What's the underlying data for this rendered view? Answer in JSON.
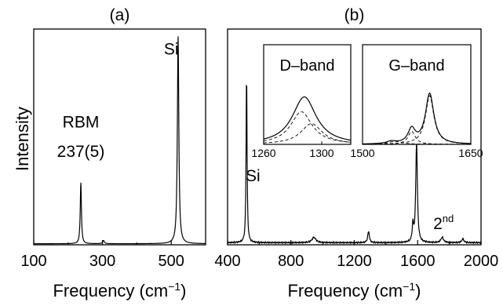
{
  "figure": {
    "ylabel": "Intensity",
    "colors": {
      "line": "#000000",
      "frame": "#000000",
      "background": "#ffffff"
    }
  },
  "chart_data": [
    {
      "type": "line",
      "panel_label": "(a)",
      "xlabel": "Frequency (cm⁻¹)",
      "ylabel": "Intensity",
      "xlim": [
        100,
        600
      ],
      "ylim": [
        0,
        1.02
      ],
      "x_ticks": [
        100,
        300,
        500
      ],
      "x_tick_labels": [
        "100",
        "300",
        "500"
      ],
      "y_ticks_shown": false,
      "series": [
        {
          "peaks": [
            {
              "center": 237,
              "height": 0.29,
              "width": 2.0,
              "shape": "lorentzian"
            },
            {
              "center": 303,
              "height": 0.015,
              "width": 3.0,
              "shape": "lorentzian"
            },
            {
              "center": 520,
              "height": 0.98,
              "width": 2.5,
              "shape": "lorentzian"
            }
          ],
          "baseline": 0.005
        }
      ],
      "annotations": [
        {
          "text": "RBM",
          "x": 237,
          "y": 0.555
        },
        {
          "text": "237(5)",
          "x": 237,
          "y": 0.415
        },
        {
          "text": "Si",
          "x": 500,
          "y": 0.9
        }
      ]
    },
    {
      "type": "line",
      "panel_label": "(b)",
      "xlabel": "Frequency (cm⁻¹)",
      "xlim": [
        400,
        2000
      ],
      "ylim": [
        0,
        1.02
      ],
      "x_ticks": [
        400,
        800,
        1200,
        1600,
        2000
      ],
      "x_tick_labels": [
        "400",
        "800",
        "1200",
        "1600",
        "2000"
      ],
      "y_ticks_shown": false,
      "series": [
        {
          "peaks": [
            {
              "center": 520,
              "height": 0.82,
              "width": 3.5,
              "shape": "lorentzian"
            },
            {
              "center": 945,
              "height": 0.025,
              "width": 15,
              "shape": "lorentzian"
            },
            {
              "center": 1290,
              "height": 0.055,
              "width": 6,
              "shape": "lorentzian"
            },
            {
              "center": 1570,
              "height": 0.08,
              "width": 5,
              "shape": "lorentzian"
            },
            {
              "center": 1593,
              "height": 0.48,
              "width": 6,
              "shape": "lorentzian"
            },
            {
              "center": 1755,
              "height": 0.025,
              "width": 10,
              "shape": "lorentzian"
            },
            {
              "center": 1885,
              "height": 0.018,
              "width": 8,
              "shape": "lorentzian"
            }
          ],
          "baseline": 0.01,
          "noise": 0.004
        }
      ],
      "annotations": [
        {
          "text": "Si",
          "x": 560,
          "y": 0.3
        },
        {
          "text": "2",
          "superscript": "nd",
          "x": 1763,
          "y": 0.075
        }
      ],
      "insets": [
        {
          "title": "D–band",
          "xlim": [
            1260,
            1320
          ],
          "x_ticks": [
            1260,
            1300
          ],
          "x_tick_labels": [
            "1260",
            "1300"
          ],
          "ylim": [
            0,
            1.15
          ],
          "series": [
            {
              "name": "",
              "style": "solid",
              "peaks": [
                {
                  "center": 1288,
                  "height": 0.8,
                  "width": 10
                }
              ]
            },
            {
              "name": "",
              "style": "dashed",
              "peaks": [
                {
                  "center": 1286,
                  "height": 0.55,
                  "width": 9
                }
              ]
            },
            {
              "name": "",
              "style": "dashed",
              "peaks": [
                {
                  "center": 1293,
                  "height": 0.35,
                  "width": 9
                }
              ]
            }
          ]
        },
        {
          "title": "G–band",
          "xlim": [
            1500,
            1650
          ],
          "x_ticks": [
            1500,
            1650
          ],
          "x_tick_labels": [
            "1500",
            "1650"
          ],
          "ylim": [
            0,
            1.15
          ],
          "series": [
            {
              "name": "",
              "style": "solid",
              "peaks": [
                {
                  "center": 1540,
                  "height": 0.04,
                  "width": 8
                },
                {
                  "center": 1568,
                  "height": 0.24,
                  "width": 6
                },
                {
                  "center": 1593,
                  "height": 0.85,
                  "width": 7
                }
              ]
            },
            {
              "name": "",
              "style": "dashed",
              "peaks": [
                {
                  "center": 1593,
                  "height": 0.82,
                  "width": 7
                }
              ]
            },
            {
              "name": "",
              "style": "dashed",
              "peaks": [
                {
                  "center": 1568,
                  "height": 0.22,
                  "width": 6
                }
              ]
            },
            {
              "name": "",
              "style": "dashed",
              "peaks": [
                {
                  "center": 1545,
                  "height": 0.05,
                  "width": 12
                }
              ]
            }
          ]
        }
      ]
    }
  ]
}
